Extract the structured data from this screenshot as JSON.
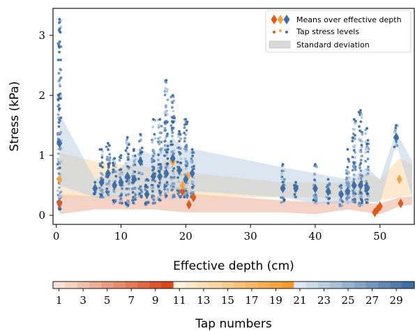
{
  "chart_data": {
    "type": "scatter",
    "xlabel": "Effective depth (cm)",
    "ylabel": "Stress (kPa)",
    "xlim": [
      -0.5,
      55.3
    ],
    "ylim": [
      -0.15,
      3.45
    ],
    "x_ticks": [
      0,
      10,
      20,
      30,
      40,
      50
    ],
    "y_ticks": [
      0,
      1,
      2,
      3
    ],
    "grid": false,
    "legend_position": "top-right",
    "legend": [
      "Means over effective depth",
      "Tap stress levels",
      "Standard deviation"
    ],
    "series": [
      {
        "name": "Standard deviation",
        "color": "#e9a58d",
        "band_x": [
          0.5,
          6,
          10,
          15,
          20,
          21.5,
          35,
          40,
          45,
          48,
          50,
          53,
          55
        ],
        "band_low": [
          0.02,
          0.1,
          0.1,
          0.1,
          0.05,
          0.05,
          0.05,
          0.02,
          0.1,
          0.05,
          0.02,
          0.15,
          0.18
        ],
        "band_high": [
          0.35,
          0.32,
          0.32,
          0.3,
          0.55,
          0.35,
          0.25,
          0.22,
          0.25,
          0.2,
          0.2,
          0.3,
          0.32
        ]
      },
      {
        "name": "Standard deviation",
        "color": "#fbd3a0",
        "band_x": [
          0.5,
          6,
          10,
          15,
          18,
          20,
          21.5,
          35,
          40,
          45,
          48,
          50,
          53,
          55
        ],
        "band_low": [
          0.3,
          0.3,
          0.3,
          0.3,
          0.4,
          0.3,
          0.3,
          0.3,
          0.3,
          0.3,
          0.2,
          0.25,
          0.3,
          0.35
        ],
        "band_high": [
          1.05,
          0.9,
          0.85,
          0.8,
          1.0,
          0.75,
          0.7,
          0.55,
          0.55,
          0.55,
          0.7,
          0.6,
          0.95,
          0.85
        ]
      },
      {
        "name": "Standard deviation",
        "color": "#b7cde3",
        "band_x": [
          0.5,
          6,
          10,
          13,
          15,
          18,
          20,
          21.5,
          35,
          40,
          45,
          48,
          50,
          52.5,
          55
        ],
        "band_low": [
          0.5,
          0.3,
          0.3,
          0.35,
          0.35,
          0.45,
          0.3,
          0.4,
          0.3,
          0.2,
          0.2,
          0.25,
          0.2,
          1.2,
          0.3
        ],
        "band_high": [
          1.7,
          0.6,
          0.8,
          1.1,
          1.0,
          1.3,
          1.1,
          1.1,
          0.8,
          0.7,
          0.6,
          0.8,
          0.6,
          1.4,
          0.9
        ]
      },
      {
        "name": "Means over effective depth",
        "color": "#dd5a1c",
        "x": [
          0.5,
          19.5,
          20.5,
          21.2,
          49.2,
          49.6,
          50,
          53.2
        ],
        "y": [
          0.2,
          0.4,
          0.18,
          0.3,
          0.05,
          0.1,
          0.15,
          0.2
        ]
      },
      {
        "name": "Means over effective depth",
        "color": "#f5a442",
        "x": [
          0.5,
          18,
          19.5,
          20.3,
          53
        ],
        "y": [
          0.6,
          0.9,
          0.5,
          0.65,
          0.6
        ]
      },
      {
        "name": "Means over effective depth",
        "color": "#3f6fa6",
        "x": [
          0.5,
          6,
          7,
          8,
          9,
          10,
          11,
          12,
          13,
          14,
          15,
          16,
          17,
          18,
          19,
          20,
          21,
          35,
          37,
          40,
          42,
          44,
          45,
          46,
          47,
          48,
          52.5
        ],
        "y": [
          1.2,
          0.45,
          0.55,
          0.7,
          0.5,
          0.55,
          0.65,
          0.6,
          0.9,
          0.35,
          0.65,
          0.65,
          0.7,
          0.95,
          0.75,
          0.6,
          0.7,
          0.45,
          0.45,
          0.45,
          0.4,
          0.35,
          0.4,
          0.5,
          0.5,
          0.45,
          1.3
        ]
      },
      {
        "name": "Tap stress levels",
        "color": "#4f80b8",
        "x_columns": [
          0.5,
          6,
          7,
          8,
          9,
          10,
          11,
          12,
          13,
          14,
          15,
          16,
          17,
          18,
          19,
          20,
          21,
          35,
          37,
          40,
          42,
          44,
          45,
          46,
          47,
          48,
          52.5
        ],
        "y_min": [
          0.1,
          0.35,
          0.3,
          0.3,
          0.2,
          0.2,
          0.15,
          0.2,
          0.3,
          0.15,
          0.2,
          0.25,
          0.3,
          0.3,
          0.3,
          0.3,
          0.3,
          0.2,
          0.3,
          0.2,
          0.2,
          0.15,
          0.2,
          0.2,
          0.15,
          0.2,
          1.1
        ],
        "y_max": [
          3.27,
          0.55,
          1.1,
          1.2,
          0.95,
          1.0,
          1.3,
          1.1,
          1.35,
          0.6,
          1.6,
          1.6,
          2.25,
          2.0,
          1.4,
          1.6,
          1.1,
          0.85,
          0.55,
          0.85,
          0.6,
          0.5,
          1.1,
          1.6,
          1.75,
          1.45,
          1.5
        ]
      }
    ],
    "colorbar": {
      "label": "Tap numbers",
      "ticks": [
        "1",
        "3",
        "5",
        "7",
        "9",
        "11",
        "13",
        "15",
        "17",
        "19",
        "21",
        "23",
        "25",
        "27",
        "29"
      ],
      "groups": [
        {
          "from": 1,
          "to": 10,
          "light": "#fbe3d6",
          "dark": "#d8461a"
        },
        {
          "from": 11,
          "to": 20,
          "light": "#fff3de",
          "dark": "#f59b2c"
        },
        {
          "from": 21,
          "to": 30,
          "light": "#dfe8f2",
          "dark": "#3f6fa6"
        }
      ]
    }
  }
}
